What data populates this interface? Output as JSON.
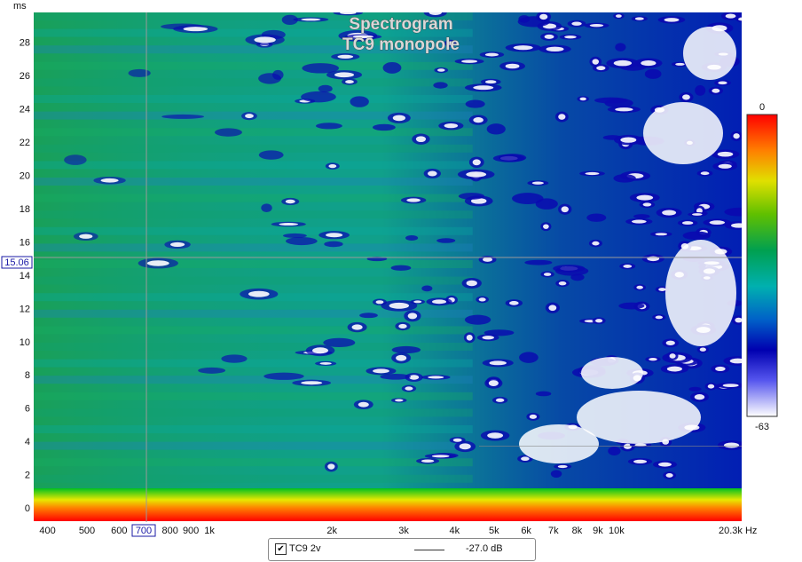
{
  "chart_data": {
    "type": "heatmap",
    "title": "Spectrogram",
    "subtitle": "TC9 monopole",
    "x_label_unit": "Hz",
    "y_label_unit": "ms",
    "x_scale": "log",
    "xlim": [
      370,
      20300
    ],
    "ylim": [
      -0.8,
      29.8
    ],
    "x_ticks": [
      {
        "value": 400,
        "label": "400"
      },
      {
        "value": 500,
        "label": "500"
      },
      {
        "value": 600,
        "label": "600"
      },
      {
        "value": 800,
        "label": "800"
      },
      {
        "value": 900,
        "label": "900"
      },
      {
        "value": 1000,
        "label": "1k"
      },
      {
        "value": 2000,
        "label": "2k"
      },
      {
        "value": 3000,
        "label": "3k"
      },
      {
        "value": 4000,
        "label": "4k"
      },
      {
        "value": 5000,
        "label": "5k"
      },
      {
        "value": 6000,
        "label": "6k"
      },
      {
        "value": 7000,
        "label": "7k"
      },
      {
        "value": 8000,
        "label": "8k"
      },
      {
        "value": 9000,
        "label": "9k"
      },
      {
        "value": 10000,
        "label": "10k"
      },
      {
        "value": 20300,
        "label": "20.3k Hz"
      }
    ],
    "y_ticks": [
      0,
      2,
      4,
      6,
      8,
      10,
      12,
      14,
      16,
      18,
      20,
      22,
      24,
      26,
      28
    ],
    "color_scale": {
      "max_label": "0",
      "min_label": "-63",
      "min": -63,
      "max": 0,
      "colors": [
        "#ffffff",
        "#5555ee",
        "#0000b0",
        "#0060c8",
        "#00b0b0",
        "#00a050",
        "#60c000",
        "#e0e000",
        "#ff8000",
        "#ff0000"
      ]
    },
    "cursor": {
      "x": 700,
      "x_label": "700",
      "y": 15.06,
      "y_label": "15.06"
    }
  },
  "legend": {
    "checked": "✔",
    "name": "TC9 2v",
    "value": "-27.0 dB"
  }
}
